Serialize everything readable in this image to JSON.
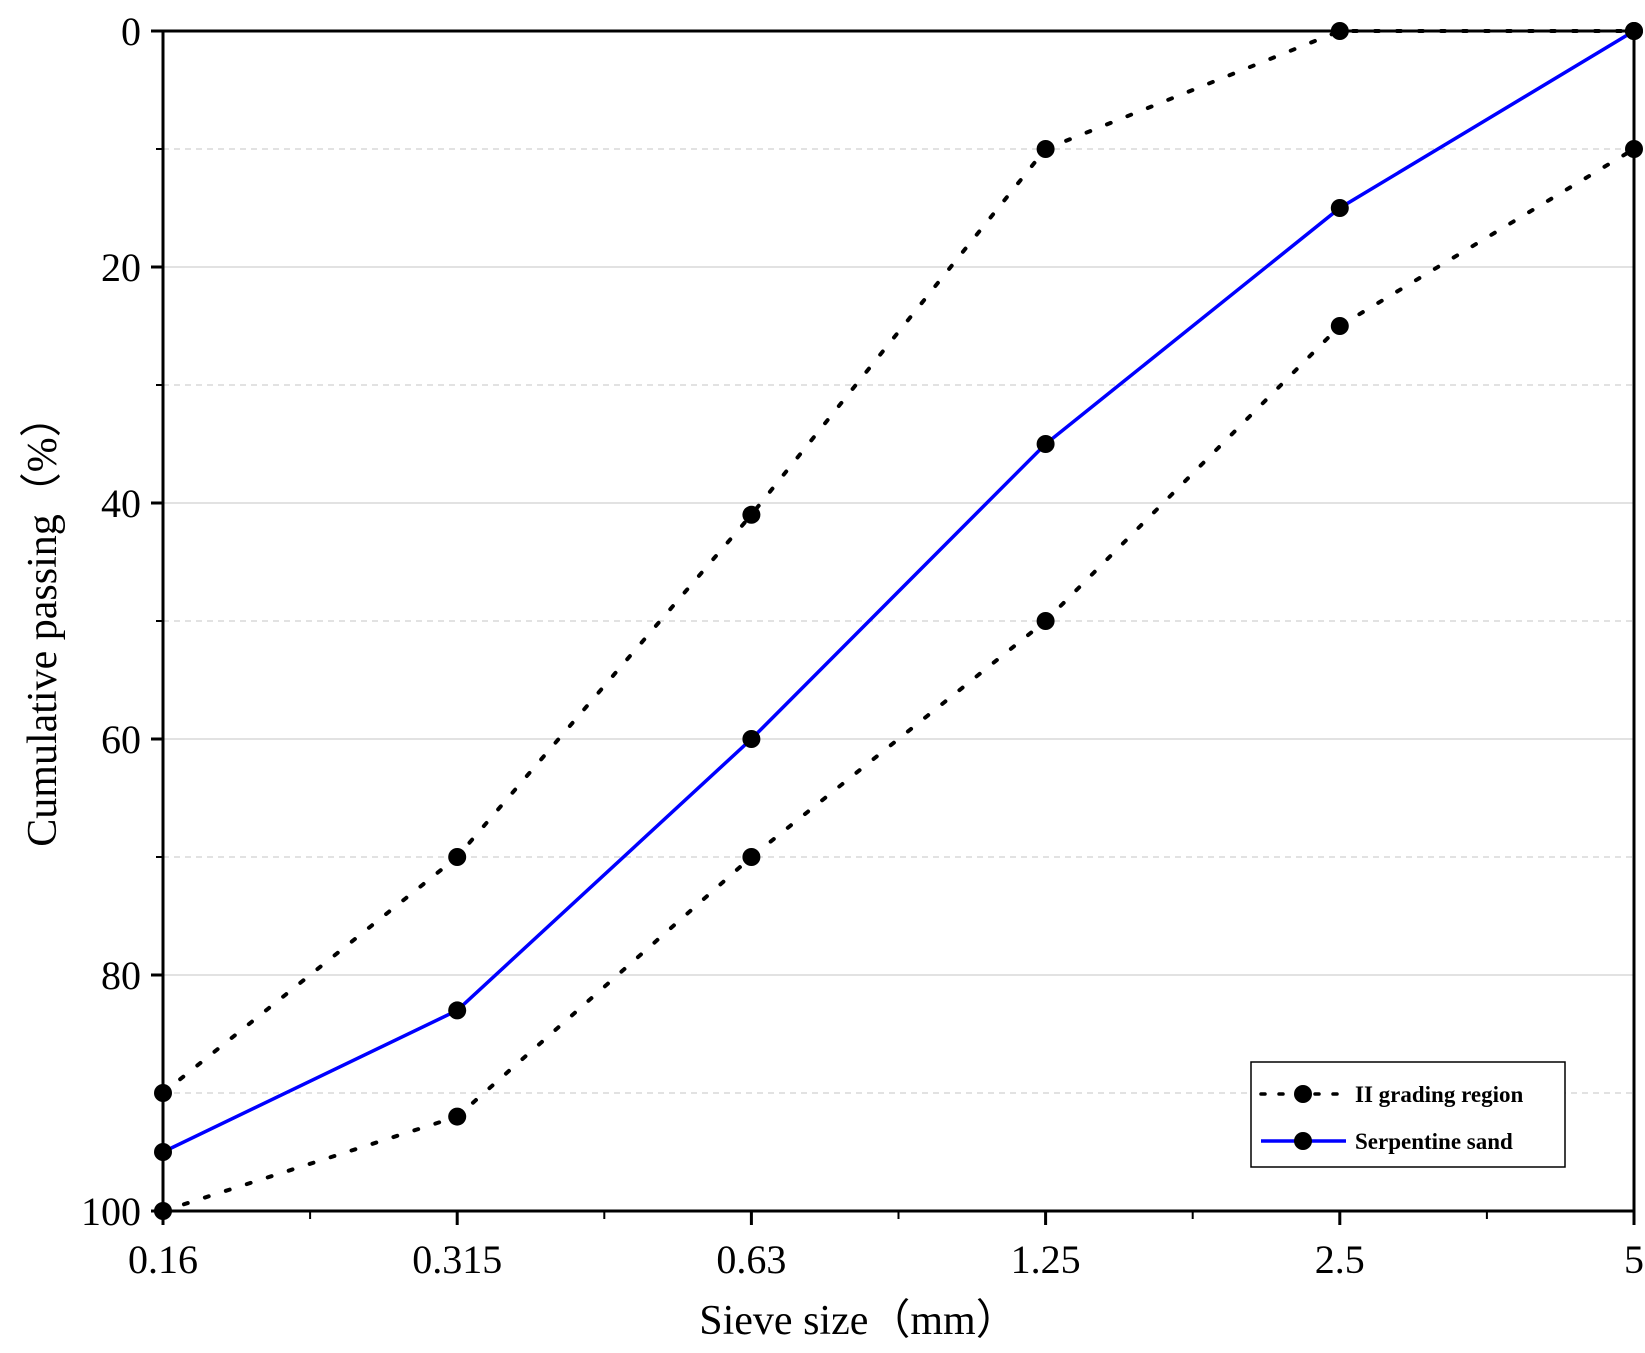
{
  "chart_data": {
    "type": "line",
    "title": "",
    "xlabel": "Sieve size（mm）",
    "ylabel": "Cumulative passing（%）",
    "x_categories": [
      "0.16",
      "0.315",
      "0.63",
      "1.25",
      "2.5",
      "5"
    ],
    "y_ticks": [
      0,
      20,
      40,
      60,
      80,
      100
    ],
    "y_minor_gridlines": [
      10,
      30,
      50,
      70,
      90
    ],
    "ylim": [
      0,
      100
    ],
    "y_inverted": true,
    "grid": true,
    "legend_position": "bottom-right",
    "series": [
      {
        "name": "II grading region",
        "role": "upper-limit",
        "style": "dotted",
        "color": "#000000",
        "values": [
          90,
          70,
          41,
          10,
          0,
          0
        ],
        "x": [
          "0.16",
          "0.315",
          "0.63",
          "1.25",
          "2.5",
          "5"
        ]
      },
      {
        "name": "II grading region",
        "role": "lower-limit",
        "style": "dotted",
        "color": "#000000",
        "values": [
          100,
          92,
          70,
          50,
          25,
          10
        ],
        "x": [
          "0.16",
          "0.315",
          "0.63",
          "1.25",
          "2.5",
          "5"
        ]
      },
      {
        "name": "Serpentine sand",
        "role": "measured",
        "style": "solid",
        "color": "#0000ff",
        "values": [
          95,
          83,
          60,
          35,
          15,
          0
        ],
        "x": [
          "0.16",
          "0.315",
          "0.63",
          "1.25",
          "2.5",
          "5"
        ]
      }
    ],
    "legend": [
      {
        "label": "II grading region",
        "style": "dotted",
        "color": "#000000"
      },
      {
        "label": "Serpentine sand",
        "style": "solid",
        "color": "#0000ff"
      }
    ]
  }
}
